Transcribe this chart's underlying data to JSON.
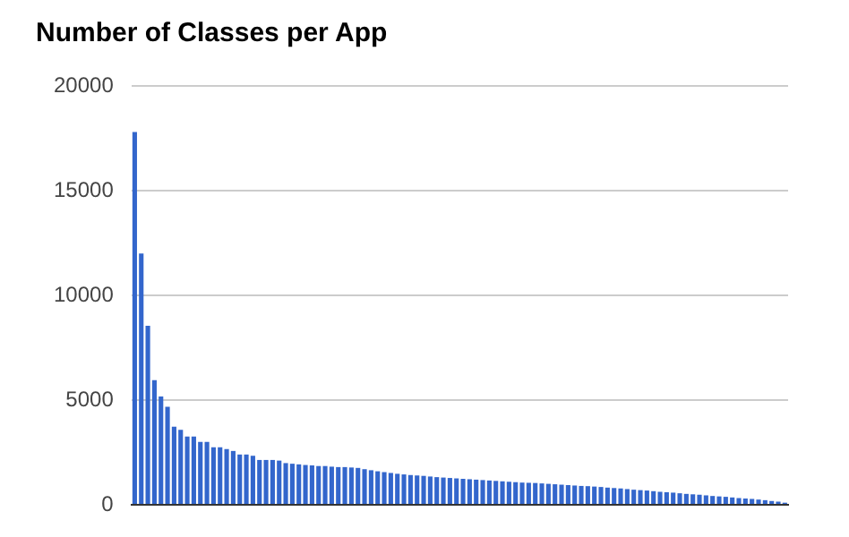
{
  "chart_data": {
    "type": "bar",
    "title": "Number of Classes per App",
    "categories": [
      null,
      null,
      null,
      null,
      null,
      null,
      null,
      null,
      null,
      null,
      null,
      null,
      null,
      null,
      null,
      null,
      null,
      null,
      null,
      null,
      null,
      null,
      null,
      null,
      null,
      null,
      null,
      null,
      null,
      null,
      null,
      null,
      null,
      null,
      null,
      null,
      null,
      null,
      null,
      null,
      null,
      null,
      null,
      null,
      null,
      null,
      null,
      null,
      null,
      null,
      null,
      null,
      null,
      null,
      null,
      null,
      null,
      null,
      null,
      null,
      null,
      null,
      null,
      null,
      null,
      null,
      null,
      null,
      null,
      null,
      null,
      null,
      null,
      null,
      null,
      null,
      null,
      null,
      null,
      null,
      null,
      null,
      null,
      null,
      null,
      null,
      null,
      null,
      null,
      null,
      null,
      null,
      null,
      null,
      null,
      null,
      null,
      null,
      null,
      null
    ],
    "values": [
      17800,
      12000,
      8550,
      5950,
      5170,
      4680,
      3730,
      3580,
      3260,
      3260,
      3000,
      3000,
      2750,
      2750,
      2660,
      2570,
      2400,
      2400,
      2340,
      2140,
      2140,
      2140,
      2110,
      1990,
      1960,
      1930,
      1900,
      1880,
      1850,
      1850,
      1820,
      1800,
      1800,
      1780,
      1760,
      1700,
      1650,
      1600,
      1560,
      1520,
      1480,
      1450,
      1420,
      1400,
      1380,
      1350,
      1320,
      1300,
      1280,
      1260,
      1240,
      1220,
      1200,
      1180,
      1160,
      1140,
      1120,
      1100,
      1080,
      1060,
      1050,
      1040,
      1020,
      1000,
      980,
      960,
      940,
      920,
      900,
      890,
      870,
      850,
      820,
      800,
      780,
      750,
      720,
      700,
      680,
      650,
      620,
      600,
      580,
      550,
      520,
      500,
      480,
      450,
      420,
      400,
      380,
      350,
      320,
      300,
      280,
      250,
      220,
      180,
      150,
      100
    ],
    "color": "#3366cc",
    "ylim": [
      0,
      20000
    ],
    "yticks": [
      0,
      5000,
      10000,
      15000,
      20000
    ],
    "grid": "y",
    "legend": false,
    "tick_labels": "y"
  }
}
